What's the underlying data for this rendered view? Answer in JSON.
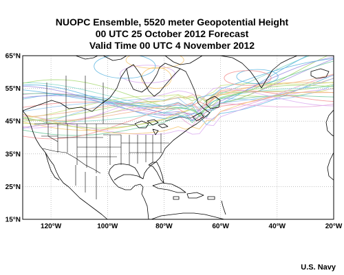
{
  "title": {
    "line1": "NUOPC Ensemble, 5520 meter Geopotential Height",
    "line2": "00 UTC 25 October 2012 Forecast",
    "line3": "Valid Time 00 UTC 4 November 2012"
  },
  "map": {
    "lat_labels": [
      "65°N",
      "55°N",
      "45°N",
      "35°N",
      "25°N",
      "15°N"
    ],
    "lon_labels": [
      "120°W",
      "100°W",
      "80°W",
      "60°W",
      "40°W",
      "20°W"
    ],
    "lat_range": [
      15,
      65
    ],
    "lon_range": [
      -130,
      -20
    ],
    "gridlines": "dotted",
    "land_outline_color": "#000000"
  },
  "ensemble_colors": [
    "#5ab4e0",
    "#a4d86e",
    "#e8a0d6",
    "#f5c46a",
    "#9b8ae0",
    "#7fd8c8",
    "#f28a8a",
    "#c7e07a",
    "#8fc3f0",
    "#d9a8f0",
    "#6cc79a",
    "#f0b08a"
  ],
  "credit": "U.S. Navy"
}
